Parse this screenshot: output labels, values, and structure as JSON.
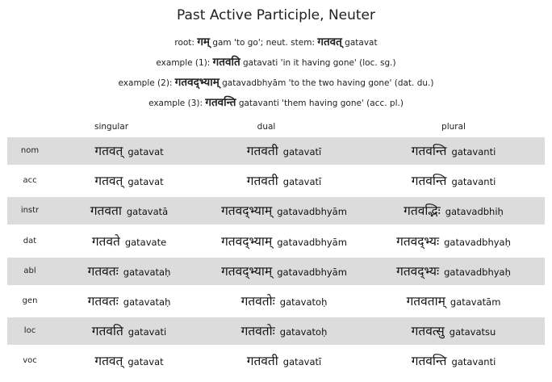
{
  "title": "Past Active Participle, Neuter",
  "notes": [
    {
      "prefix": "root: ",
      "dev": "गम्",
      "text1": " gam 'to go'; neut. stem: ",
      "dev2": "गतवत्",
      "text2": " gatavat"
    },
    {
      "prefix": "example (1): ",
      "dev": "गतवति",
      "text1": " gatavati 'in it having gone' (loc. sg.)",
      "dev2": "",
      "text2": ""
    },
    {
      "prefix": "example (2): ",
      "dev": "गतवद्भ्याम्",
      "text1": " gatavadbhyām 'to the two having gone' (dat. du.)",
      "dev2": "",
      "text2": ""
    },
    {
      "prefix": "example (3): ",
      "dev": "गतवन्ति",
      "text1": " gatavanti 'them having gone' (acc. pl.)",
      "dev2": "",
      "text2": ""
    }
  ],
  "columns": {
    "singular": "singular",
    "dual": "dual",
    "plural": "plural"
  },
  "rows": [
    {
      "case": "nom",
      "sg": {
        "dev": "गतवत्",
        "rom": "gatavat"
      },
      "du": {
        "dev": "गतवती",
        "rom": "gatavatī"
      },
      "pl": {
        "dev": "गतवन्ति",
        "rom": "gatavanti"
      }
    },
    {
      "case": "acc",
      "sg": {
        "dev": "गतवत्",
        "rom": "gatavat"
      },
      "du": {
        "dev": "गतवती",
        "rom": "gatavatī"
      },
      "pl": {
        "dev": "गतवन्ति",
        "rom": "gatavanti"
      }
    },
    {
      "case": "instr",
      "sg": {
        "dev": "गतवता",
        "rom": "gatavatā"
      },
      "du": {
        "dev": "गतवद्भ्याम्",
        "rom": "gatavadbhyām"
      },
      "pl": {
        "dev": "गतवद्भिः",
        "rom": "gatavadbhiḥ"
      }
    },
    {
      "case": "dat",
      "sg": {
        "dev": "गतवते",
        "rom": "gatavate"
      },
      "du": {
        "dev": "गतवद्भ्याम्",
        "rom": "gatavadbhyām"
      },
      "pl": {
        "dev": "गतवद्भ्यः",
        "rom": "gatavadbhyaḥ"
      }
    },
    {
      "case": "abl",
      "sg": {
        "dev": "गतवतः",
        "rom": "gatavataḥ"
      },
      "du": {
        "dev": "गतवद्भ्याम्",
        "rom": "gatavadbhyām"
      },
      "pl": {
        "dev": "गतवद्भ्यः",
        "rom": "gatavadbhyaḥ"
      }
    },
    {
      "case": "gen",
      "sg": {
        "dev": "गतवतः",
        "rom": "gatavataḥ"
      },
      "du": {
        "dev": "गतवतोः",
        "rom": "gatavatoḥ"
      },
      "pl": {
        "dev": "गतवताम्",
        "rom": "gatavatām"
      }
    },
    {
      "case": "loc",
      "sg": {
        "dev": "गतवति",
        "rom": "gatavati"
      },
      "du": {
        "dev": "गतवतोः",
        "rom": "gatavatoḥ"
      },
      "pl": {
        "dev": "गतवत्सु",
        "rom": "gatavatsu"
      }
    },
    {
      "case": "voc",
      "sg": {
        "dev": "गतवत्",
        "rom": "gatavat"
      },
      "du": {
        "dev": "गतवती",
        "rom": "gatavatī"
      },
      "pl": {
        "dev": "गतवन्ति",
        "rom": "gatavanti"
      }
    }
  ],
  "colors": {
    "shaded_row": "#dcdcdc",
    "background": "#ffffff",
    "text": "#111111"
  }
}
